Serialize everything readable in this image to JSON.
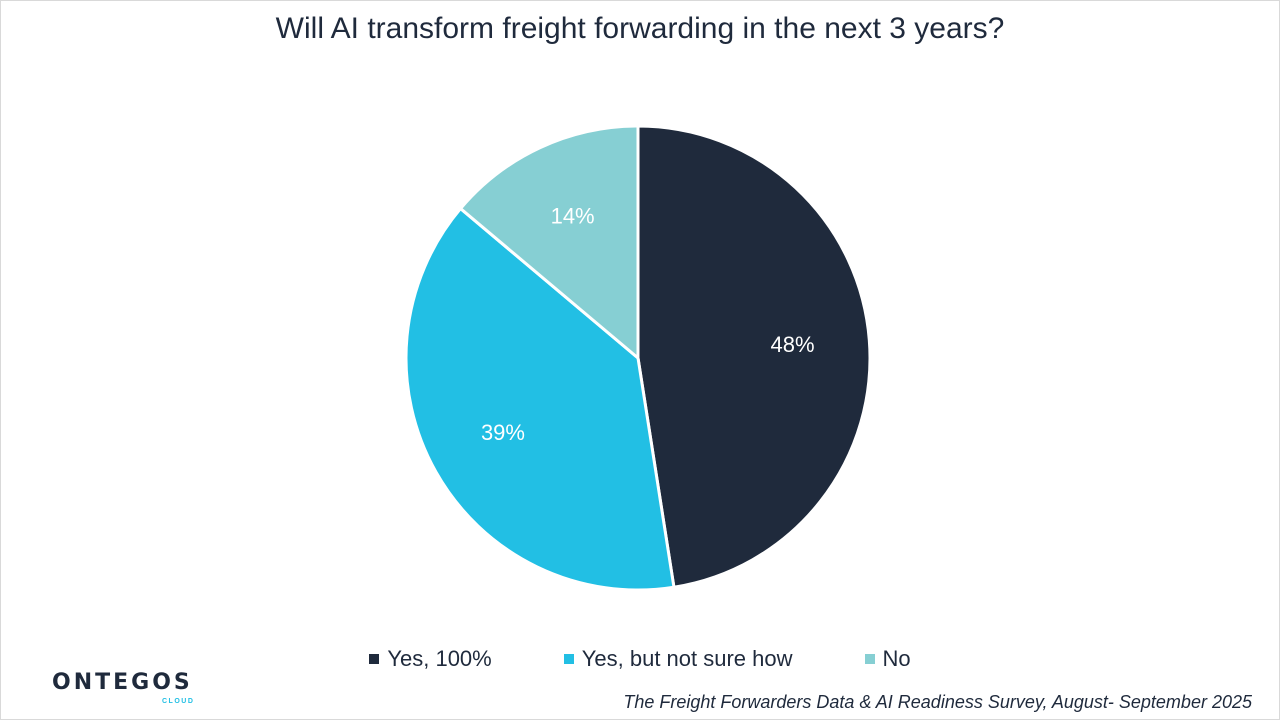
{
  "title": "Will AI transform freight forwarding in the next 3 years?",
  "chart_data": {
    "type": "pie",
    "title": "Will AI transform freight forwarding in the next 3 years?",
    "slices": [
      {
        "label": "Yes, 100%",
        "value": 48,
        "display": "48%",
        "color": "#1f2a3c",
        "label_color": "#ffffff"
      },
      {
        "label": "Yes, but not sure how",
        "value": 39,
        "display": "39%",
        "color": "#22bfe4",
        "label_color": "#ffffff"
      },
      {
        "label": "No",
        "value": 14,
        "display": "14%",
        "color": "#86cfd3",
        "label_color": "#ffffff"
      }
    ],
    "legend_position": "bottom"
  },
  "logo": {
    "name": "ONTEGOS",
    "sub": "CLOUD"
  },
  "source": "The Freight Forwarders Data & AI Readiness Survey, August- September 2025"
}
